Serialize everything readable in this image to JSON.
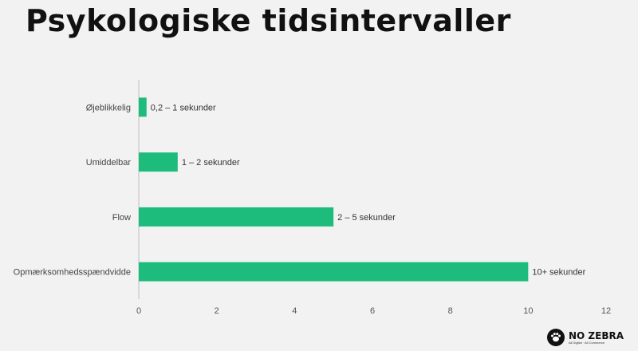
{
  "title": "Psykologiske tidsintervaller",
  "logo": {
    "name": "NO ZEBRA",
    "tagline": "All Digital · All Commerce",
    "icon": "zebra-paw-icon"
  },
  "colors": {
    "bar": "#1dbc7c",
    "axis": "#bfbfbf",
    "background": "#f2f2f2"
  },
  "chart_data": {
    "type": "bar",
    "orientation": "horizontal",
    "categories": [
      "Øjeblikkelig",
      "Umiddelbar",
      "Flow",
      "Opmærksomhedsspændvidde"
    ],
    "values": [
      0.2,
      1,
      5,
      10
    ],
    "data_labels": [
      "0,2 – 1 sekunder",
      "1 – 2 sekunder",
      "2 – 5 sekunder",
      "10+ sekunder"
    ],
    "xlim": [
      0,
      12
    ],
    "xticks": [
      "0",
      "2",
      "4",
      "6",
      "8",
      "10",
      "12"
    ],
    "grid": false,
    "legend": "none"
  }
}
